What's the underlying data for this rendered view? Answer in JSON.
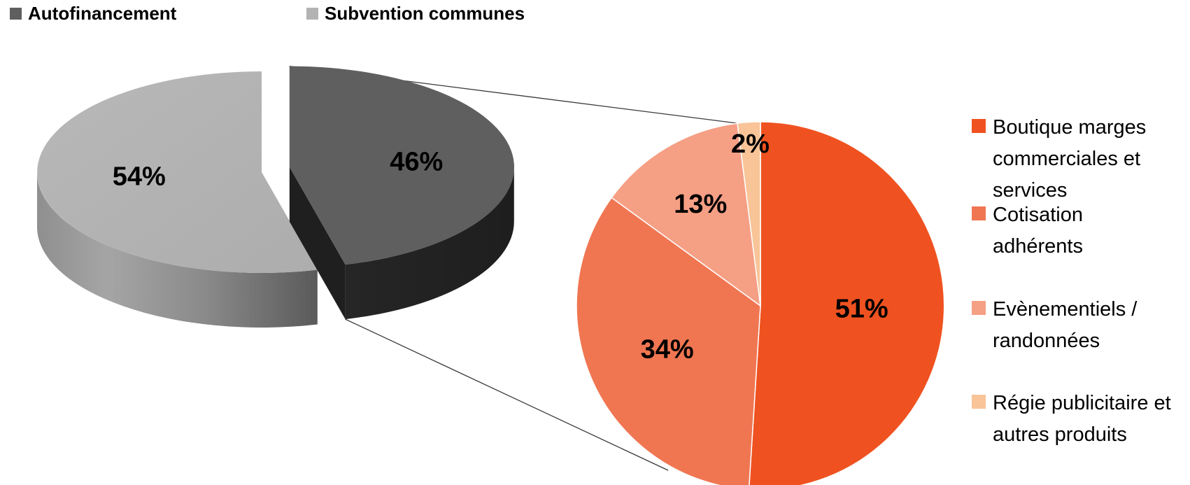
{
  "chart_data": [
    {
      "type": "pie",
      "legend_position": "top",
      "slices": [
        {
          "label": "Autofinancement",
          "value": 46,
          "display": "46%",
          "color": "#5f5f5f"
        },
        {
          "label": "Subvention communes",
          "value": 54,
          "display": "54%",
          "color": "#b3b3b3"
        }
      ]
    },
    {
      "type": "pie",
      "legend_position": "right",
      "slices": [
        {
          "label": "Boutique marges commerciales et services",
          "value": 51,
          "display": "51%",
          "color": "#ef5220"
        },
        {
          "label": "Cotisation adhérents",
          "value": 34,
          "display": "34%",
          "color": "#f07652"
        },
        {
          "label": "Evènementiels / randonnées",
          "value": 13,
          "display": "13%",
          "color": "#f59f85"
        },
        {
          "label": "Régie publicitaire et autres produits",
          "value": 2,
          "display": "2%",
          "color": "#f8c498"
        }
      ]
    }
  ]
}
